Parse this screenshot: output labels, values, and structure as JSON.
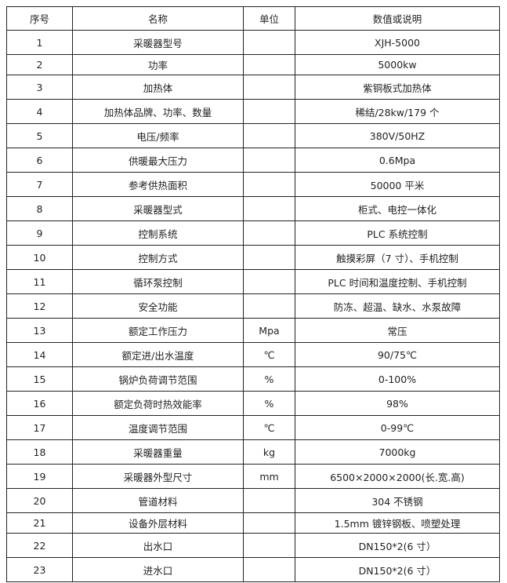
{
  "headers": [
    "序号",
    "名称",
    "单位",
    "数值或说明"
  ],
  "rows": [
    [
      "1",
      "采暖器型号",
      "",
      "XJH-5000"
    ],
    [
      "2",
      "功率",
      "",
      "5000kw"
    ],
    [
      "3",
      "加热体",
      "",
      "紫铜板式加热体"
    ],
    [
      "4",
      "加热体品牌、功率、数量",
      "",
      "稀结/28kw/179 个"
    ],
    [
      "5",
      "电压/频率",
      "",
      "380V/50HZ"
    ],
    [
      "6",
      "供暖最大压力",
      "",
      "0.6Mpa"
    ],
    [
      "7",
      "参考供热面积",
      "",
      "50000 平米"
    ],
    [
      "8",
      "采暖器型式",
      "",
      "柜式、电控一体化"
    ],
    [
      "9",
      "控制系统",
      "",
      "PLC 系统控制"
    ],
    [
      "10",
      "控制方式",
      "",
      "触摸彩屏（7 寸）、手机控制"
    ],
    [
      "11",
      "循环泵控制",
      "",
      "PLC 时间和温度控制、手机控制"
    ],
    [
      "12",
      "安全功能",
      "",
      "防冻、超温、缺水、水泵故障"
    ],
    [
      "13",
      "额定工作压力",
      "Mpa",
      "常压"
    ],
    [
      "14",
      "额定进/出水温度",
      "℃",
      "90/75℃"
    ],
    [
      "15",
      "锅炉负荷调节范围",
      "%",
      "0-100%"
    ],
    [
      "16",
      "额定负荷时热效能率",
      "%",
      "98%"
    ],
    [
      "17",
      "温度调节范围",
      "℃",
      "0-99℃"
    ],
    [
      "18",
      "采暖器重量",
      "kg",
      "7000kg"
    ],
    [
      "19",
      "采暖器外型尺寸",
      "mm",
      "6500×2000×2000(长.宽.高)"
    ],
    [
      "20",
      "管道材料",
      "",
      "304 不锈钢"
    ],
    [
      "21",
      "设备外层材料",
      "",
      "1.5mm 镀锌钢板、喷塑处理"
    ],
    [
      "22",
      "出水口",
      "",
      "DN150*2(6 寸）"
    ],
    [
      "23",
      "进水口",
      "",
      "DN150*2(6 寸）"
    ]
  ]
}
